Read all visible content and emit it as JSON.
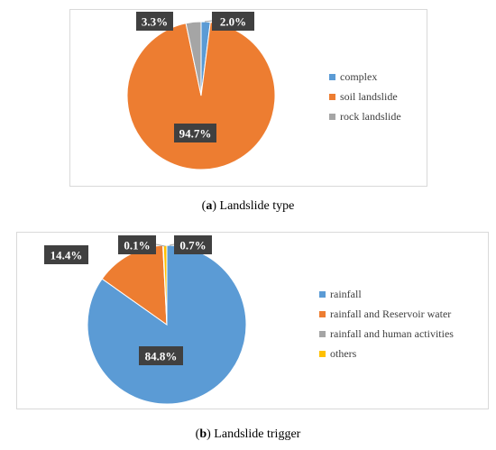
{
  "chart_data": [
    {
      "type": "pie",
      "caption_tag": "a",
      "caption_text": "Landslide type",
      "legend_position": "right",
      "series": [
        {
          "name": "complex",
          "value": 2.0,
          "label": "2.0%",
          "color": "#5b9bd5"
        },
        {
          "name": "soil landslide",
          "value": 94.7,
          "label": "94.7%",
          "color": "#ed7d31"
        },
        {
          "name": "rock landslide",
          "value": 3.3,
          "label": "3.3%",
          "color": "#a5a5a5"
        }
      ]
    },
    {
      "type": "pie",
      "caption_tag": "b",
      "caption_text": "Landslide trigger",
      "legend_position": "right",
      "series": [
        {
          "name": "rainfall",
          "value": 84.8,
          "label": "84.8%",
          "color": "#5b9bd5"
        },
        {
          "name": "rainfall and Reservoir water",
          "value": 14.4,
          "label": "14.4%",
          "color": "#ed7d31"
        },
        {
          "name": "rainfall and human activities",
          "value": 0.1,
          "label": "0.1%",
          "color": "#a5a5a5"
        },
        {
          "name": "others",
          "value": 0.7,
          "label": "0.7%",
          "color": "#ffc000"
        }
      ]
    }
  ]
}
